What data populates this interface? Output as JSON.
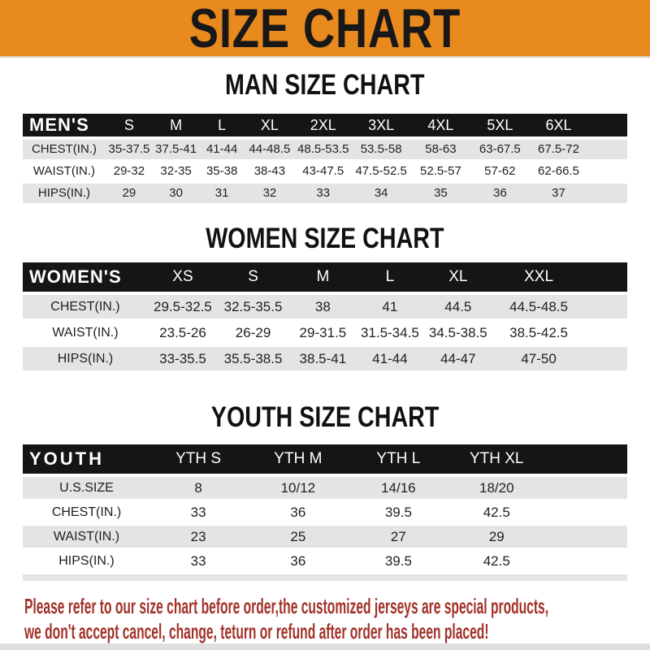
{
  "banner": {
    "title": "SIZE CHART"
  },
  "colors": {
    "banner_bg": "#E98A1E",
    "table_header_bg": "#151515",
    "table_header_text": "#FFFFFF",
    "row_shade": "#E4E4E4",
    "footer_text": "#A23229"
  },
  "chart_data": [
    {
      "type": "table",
      "title": "MAN SIZE CHART",
      "corner_label": "MEN'S",
      "columns": [
        "S",
        "M",
        "L",
        "XL",
        "2XL",
        "3XL",
        "4XL",
        "5XL",
        "6XL"
      ],
      "rows": [
        {
          "label": "CHEST(IN.)",
          "values": [
            "35-37.5",
            "37.5-41",
            "41-44",
            "44-48.5",
            "48.5-53.5",
            "53.5-58",
            "58-63",
            "63-67.5",
            "67.5-72"
          ]
        },
        {
          "label": "WAIST(IN.)",
          "values": [
            "29-32",
            "32-35",
            "35-38",
            "38-43",
            "43-47.5",
            "47.5-52.5",
            "52.5-57",
            "57-62",
            "62-66.5"
          ]
        },
        {
          "label": "HIPS(IN.)",
          "values": [
            "29",
            "30",
            "31",
            "32",
            "33",
            "34",
            "35",
            "36",
            "37"
          ]
        }
      ]
    },
    {
      "type": "table",
      "title": "WOMEN SIZE CHART",
      "corner_label": "WOMEN'S",
      "columns": [
        "XS",
        "S",
        "M",
        "L",
        "XL",
        "XXL"
      ],
      "rows": [
        {
          "label": "CHEST(IN.)",
          "values": [
            "29.5-32.5",
            "32.5-35.5",
            "38",
            "41",
            "44.5",
            "44.5-48.5"
          ]
        },
        {
          "label": "WAIST(IN.)",
          "values": [
            "23.5-26",
            "26-29",
            "29-31.5",
            "31.5-34.5",
            "34.5-38.5",
            "38.5-42.5"
          ]
        },
        {
          "label": "HIPS(IN.)",
          "values": [
            "33-35.5",
            "35.5-38.5",
            "38.5-41",
            "41-44",
            "44-47",
            "47-50"
          ]
        }
      ]
    },
    {
      "type": "table",
      "title": "YOUTH SIZE CHART",
      "corner_label": "YOUTH",
      "columns": [
        "YTH S",
        "YTH M",
        "YTH L",
        "YTH XL"
      ],
      "rows": [
        {
          "label": "U.S.SIZE",
          "values": [
            "8",
            "10/12",
            "14/16",
            "18/20"
          ]
        },
        {
          "label": "CHEST(IN.)",
          "values": [
            "33",
            "36",
            "39.5",
            "42.5"
          ]
        },
        {
          "label": "WAIST(IN.)",
          "values": [
            "23",
            "25",
            "27",
            "29"
          ]
        },
        {
          "label": "HIPS(IN.)",
          "values": [
            "33",
            "36",
            "39.5",
            "42.5"
          ]
        }
      ]
    }
  ],
  "footer": {
    "lines": [
      "Please refer to our size chart before order,the customized jerseys are special products,",
      "we don't accept cancel, change, teturn or refund after order has been placed!"
    ]
  }
}
